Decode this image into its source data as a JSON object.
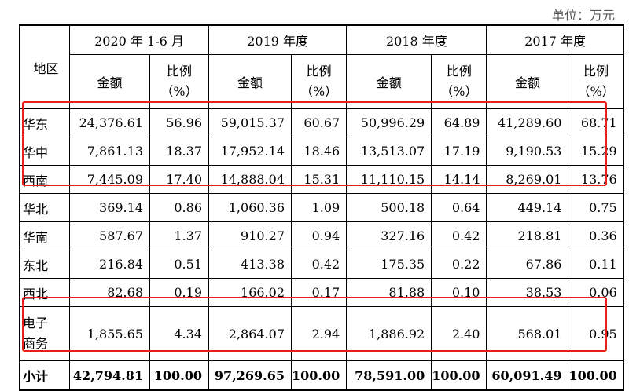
{
  "unit_label": "单位：万元",
  "header": {
    "region": "地区",
    "years": [
      "2020 年 1-6 月",
      "2019 年度",
      "2018 年度",
      "2017 年度"
    ],
    "amount": "金额",
    "ratio_line1": "比例",
    "ratio_line2": "（%）"
  },
  "rows": [
    {
      "region": "华东",
      "values": [
        "24,376.61",
        "56.96",
        "59,015.37",
        "60.67",
        "50,996.29",
        "64.89",
        "41,289.60",
        "68.71"
      ]
    },
    {
      "region": "华中",
      "values": [
        "7,861.13",
        "18.37",
        "17,952.14",
        "18.46",
        "13,513.07",
        "17.19",
        "9,190.53",
        "15.29"
      ]
    },
    {
      "region": "西南",
      "values": [
        "7,445.09",
        "17.40",
        "14,888.04",
        "15.31",
        "11,110.15",
        "14.14",
        "8,269.01",
        "13.76"
      ]
    },
    {
      "region": "华北",
      "values": [
        "369.14",
        "0.86",
        "1,060.36",
        "1.09",
        "500.18",
        "0.64",
        "449.14",
        "0.75"
      ]
    },
    {
      "region": "华南",
      "values": [
        "587.67",
        "1.37",
        "910.27",
        "0.94",
        "327.16",
        "0.42",
        "218.81",
        "0.36"
      ]
    },
    {
      "region": "东北",
      "values": [
        "216.84",
        "0.51",
        "413.38",
        "0.42",
        "175.35",
        "0.22",
        "67.86",
        "0.11"
      ]
    },
    {
      "region": "西北",
      "values": [
        "82.68",
        "0.19",
        "166.02",
        "0.17",
        "81.88",
        "0.10",
        "38.53",
        "0.06"
      ]
    },
    {
      "region": "电子商务",
      "region_line1": "电子",
      "region_line2": "商务",
      "values": [
        "1,855.65",
        "4.34",
        "2,864.07",
        "2.94",
        "1,886.92",
        "2.40",
        "568.01",
        "0.95"
      ]
    },
    {
      "region": "小计",
      "values": [
        "42,794.81",
        "100.00",
        "97,269.65",
        "100.00",
        "78,591.00",
        "100.00",
        "60,091.49",
        "100.00"
      ]
    }
  ],
  "highlight_color": "#e8201a"
}
